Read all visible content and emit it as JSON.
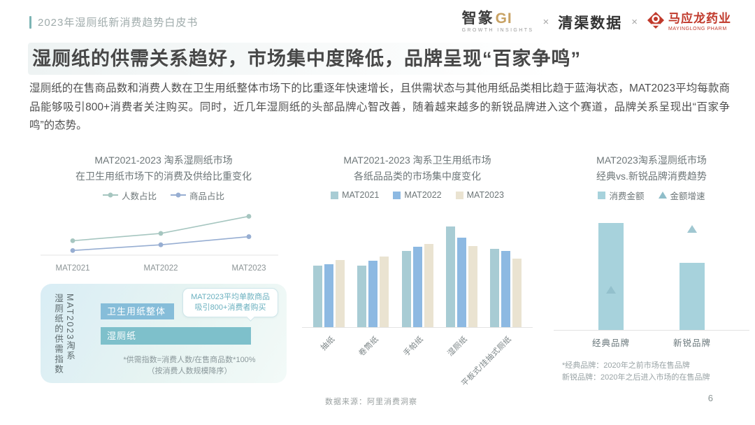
{
  "header": {
    "doc_title": "2023年湿厕纸新消费趋势白皮书",
    "logos": {
      "zhizhuan_cn": "智篆",
      "zhizhuan_gi": "GI",
      "zhizhuan_sub": "GROWTH INSIGHTS",
      "separator": "×",
      "qingqu": "清渠数据",
      "mayinglong_cn": "马应龙药业",
      "mayinglong_sub": "MAYINGLONG PHARM",
      "badge_color": "#c0392b"
    }
  },
  "headline": "湿厕纸的供需关系趋好，市场集中度降低，品牌呈现“百家争鸣”",
  "body_paragraph": "湿厕纸的在售商品数和消费人数在卫生用纸整体市场下的比重逐年快速增长，且供需状态与其他用纸品类相比趋于蓝海状态，MAT2023平均每款商品能够吸引800+消费者关注购买。同时，近几年湿厕纸的头部品牌心智改善，随着越来越多的新锐品牌进入这个赛道，品牌关系呈现出“百家争鸣”的态势。",
  "chart_data": [
    {
      "type": "line",
      "title_lines": [
        "MAT2021-2023 淘系湿厕纸市场",
        "在卫生用纸市场下的消费及供给比重变化"
      ],
      "categories": [
        "MAT2021",
        "MAT2022",
        "MAT2023"
      ],
      "series": [
        {
          "name": "人数占比",
          "color": "#a6c6c0",
          "values": [
            16,
            25,
            46
          ]
        },
        {
          "name": "商品占比",
          "color": "#97aed2",
          "values": [
            4,
            11,
            21
          ]
        }
      ],
      "ylim": [
        0,
        55
      ],
      "grid": false,
      "legend_position": "top",
      "note": "axis unlabeled; values are relative share estimated from pixel positions"
    },
    {
      "type": "bar",
      "title_lines": [
        "MAT2021-2023 淘系卫生用纸市场",
        "各纸品品类的市场集中度变化"
      ],
      "categories": [
        "抽纸",
        "卷筒纸",
        "手帕纸",
        "湿厕纸",
        "平板式/挂抽式厕纸"
      ],
      "series": [
        {
          "name": "MAT2021",
          "color": "#a8ccd4",
          "values": [
            61,
            61,
            76,
            100,
            78
          ]
        },
        {
          "name": "MAT2022",
          "color": "#8db9e2",
          "values": [
            63,
            66,
            80,
            89,
            76
          ]
        },
        {
          "name": "MAT2023",
          "color": "#eae3d1",
          "values": [
            67,
            70,
            83,
            81,
            68
          ]
        }
      ],
      "ylim": [
        0,
        110
      ],
      "grid": false,
      "legend_position": "top",
      "note": "axis unlabeled; concentration index values estimated from bar heights (tallest = 100)"
    },
    {
      "type": "bar",
      "title_lines": [
        "MAT2023淘系湿厕纸市场",
        "经典vs.新锐品牌消费趋势"
      ],
      "categories": [
        "经典品牌",
        "新锐品牌"
      ],
      "series": [
        {
          "name": "消费金额",
          "kind": "bar",
          "color": "#a7d2dc",
          "values": [
            100,
            63
          ]
        },
        {
          "name": "金额增速",
          "kind": "triangle",
          "color": "#8fbdc9",
          "values": [
            34,
            91
          ]
        }
      ],
      "ylim": [
        0,
        110
      ],
      "grid": false,
      "legend_position": "top",
      "footnote_lines": [
        "*经典品牌：2020年之前市场在售品牌",
        "新锐品牌：2020年之后进入市场的在售品牌"
      ],
      "note": "axis unlabeled; values estimated from pixel heights (tallest bar = 100)"
    }
  ],
  "supply_panel": {
    "vertical_label_line1": "MAT2023淘系",
    "vertical_label_line2": "湿厕纸的供需指数",
    "bars": [
      {
        "label": "卫生用纸整体",
        "color": "#86bdd9",
        "width_pct": 42
      },
      {
        "label": "湿厕纸",
        "color": "#7ec0cb",
        "width_pct": 86
      }
    ],
    "callout_lines": [
      "MAT2023平均单款商品",
      "吸引800+消费者购买"
    ],
    "footnote_lines": [
      "*供需指数=消费人数/在售商品数*100%",
      "（按消费人数规模降序）"
    ]
  },
  "footer": {
    "data_source": "数据来源：阿里消费洞察",
    "page_number": "6"
  }
}
